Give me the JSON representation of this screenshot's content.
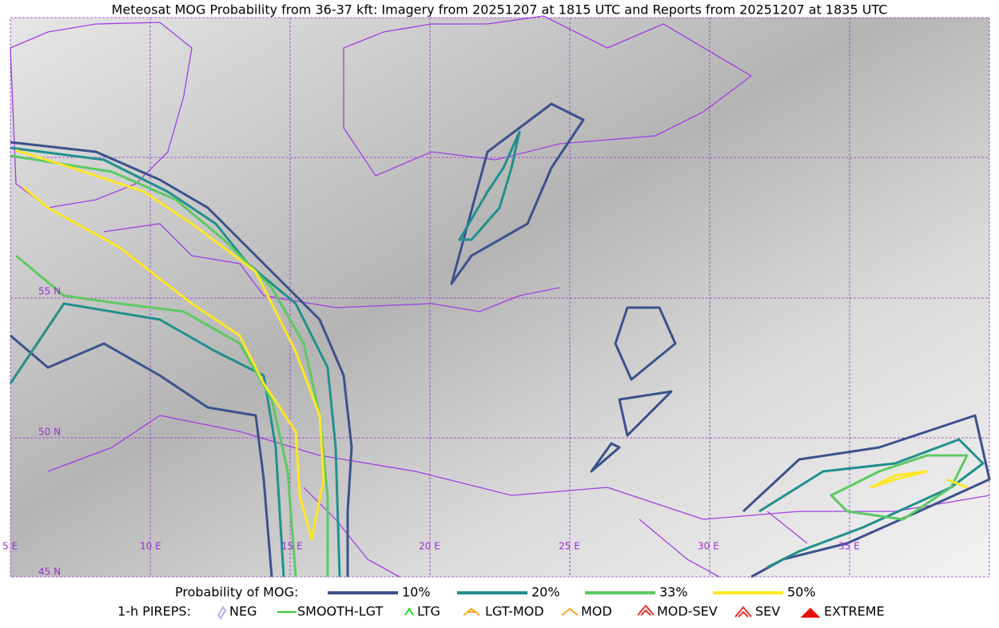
{
  "title": "Meteosat MOG Probability from 36-37 kft: Imagery from 20251207 at 1815 UTC and Reports from 20251207 at 1835 UTC",
  "map": {
    "lat_labels": [
      "55 N",
      "50 N",
      "45 N"
    ],
    "lon_labels": [
      "5 E",
      "10 E",
      "15 E",
      "20 E",
      "25 E",
      "30 E",
      "35 E"
    ]
  },
  "legend": {
    "probability": {
      "label": "Probability of MOG:",
      "items": [
        {
          "label": "10%",
          "color": "#3b528b"
        },
        {
          "label": "20%",
          "color": "#21908d"
        },
        {
          "label": "33%",
          "color": "#5dc963"
        },
        {
          "label": "50%",
          "color": "#fde725"
        }
      ]
    },
    "pireps": {
      "label": "1-h PIREPS:",
      "items": [
        {
          "label": "NEG",
          "color": "#b0b0f0"
        },
        {
          "label": "SMOOTH-LGT",
          "color": "#33cc33"
        },
        {
          "label": "LTG",
          "color": "#22dd22"
        },
        {
          "label": "LGT-MOD",
          "color": "#f5a623"
        },
        {
          "label": "MOD",
          "color": "#f5a623"
        },
        {
          "label": "MOD-SEV",
          "color": "#e8322a"
        },
        {
          "label": "SEV",
          "color": "#e8322a"
        },
        {
          "label": "EXTREME",
          "color": "#e8100a"
        }
      ]
    }
  }
}
